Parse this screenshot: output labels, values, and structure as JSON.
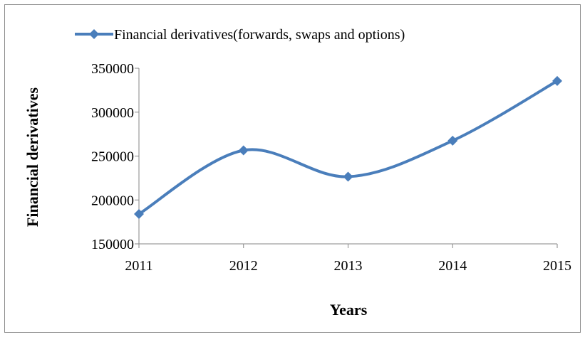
{
  "chart_data": {
    "type": "line",
    "x": [
      "2011",
      "2012",
      "2013",
      "2014",
      "2015"
    ],
    "series": [
      {
        "name": "Financial derivatives(forwards, swaps and options)",
        "values": [
          184000,
          256500,
          226500,
          267500,
          335500
        ],
        "color": "#4a7ebb",
        "marker": "diamond",
        "smooth": true
      }
    ],
    "xlabel": "Years",
    "ylabel": "Financial derivatives",
    "ylim": [
      150000,
      350000
    ],
    "yticks": [
      "150000",
      "200000",
      "250000",
      "300000",
      "350000"
    ],
    "grid": false,
    "legend": "top"
  }
}
